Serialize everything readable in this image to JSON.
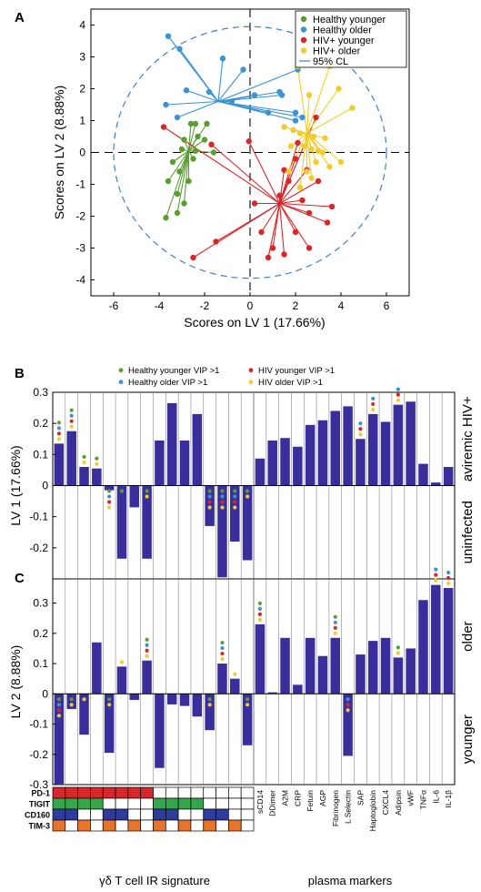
{
  "figure": {
    "panel_A": "A",
    "panel_B": "B",
    "panel_C": "C"
  },
  "colors": {
    "healthy_younger": "#5a9e32",
    "healthy_older": "#3b93d1",
    "hiv_younger": "#d9262a",
    "hiv_older": "#f2cc2a",
    "bar": "#3a2d9c",
    "ellipse": "#3f7fc4",
    "pd1": "#d9262a",
    "tigit": "#36a64a",
    "cd160": "#2f3c9e",
    "tim3": "#e8742a"
  },
  "chart_data": [
    {
      "type": "scatter",
      "xlabel": "Scores on LV 1 (17.66%)",
      "ylabel": "Scores on LV 2 (8.88%)",
      "xlim": [
        -7,
        7
      ],
      "ylim": [
        -4.5,
        4.5
      ],
      "xticks": [
        -6,
        -4,
        -2,
        0,
        2,
        4,
        6
      ],
      "yticks": [
        4,
        3,
        2,
        1,
        0,
        -1,
        -2,
        -3,
        -4
      ],
      "legend_position": "top-right",
      "confidence_ellipse": {
        "label": "95% CL",
        "x_radius": 6,
        "y_radius": 3.95
      },
      "series": [
        {
          "name": "Healthy younger",
          "centroid": [
            -2.7,
            0.05
          ],
          "points": [
            [
              -2.6,
              0.9
            ],
            [
              -2.4,
              0.9
            ],
            [
              -1.9,
              0.9
            ],
            [
              -2.9,
              0.4
            ],
            [
              -2.3,
              0.5
            ],
            [
              -2.0,
              0.4
            ],
            [
              -3.0,
              0.1
            ],
            [
              -2.4,
              0.05
            ],
            [
              -1.6,
              0.0
            ],
            [
              -3.4,
              -0.3
            ],
            [
              -2.5,
              -0.2
            ],
            [
              -3.1,
              -0.6
            ],
            [
              -3.6,
              -0.9
            ],
            [
              -2.7,
              -0.9
            ],
            [
              -3.2,
              -1.3
            ],
            [
              -2.9,
              -1.6
            ],
            [
              -3.7,
              -2.05
            ],
            [
              -3.2,
              -1.9
            ]
          ]
        },
        {
          "name": "Healthy older",
          "centroid": [
            -1.4,
            1.6
          ],
          "points": [
            [
              -3.6,
              3.65
            ],
            [
              -3.1,
              3.25
            ],
            [
              -1.2,
              2.95
            ],
            [
              -0.3,
              2.6
            ],
            [
              -2.8,
              1.95
            ],
            [
              -1.8,
              1.9
            ],
            [
              0.2,
              1.8
            ],
            [
              1.4,
              1.8
            ],
            [
              -3.7,
              1.5
            ],
            [
              -0.8,
              1.6
            ],
            [
              -3.2,
              1.1
            ],
            [
              2.0,
              1.25
            ],
            [
              1.3,
              1.9
            ],
            [
              2.1,
              2.6
            ],
            [
              0.8,
              1.25
            ],
            [
              2.3,
              1.1
            ],
            [
              2.0,
              1.0
            ]
          ]
        },
        {
          "name": "HIV+ younger",
          "centroid": [
            1.3,
            -1.6
          ],
          "points": [
            [
              -3.8,
              0.8
            ],
            [
              -1.7,
              0.25
            ],
            [
              -0.05,
              0.35
            ],
            [
              2.1,
              0.3
            ],
            [
              2.9,
              1.1
            ],
            [
              2.0,
              -0.2
            ],
            [
              1.5,
              -0.55
            ],
            [
              2.5,
              -0.55
            ],
            [
              1.7,
              -0.9
            ],
            [
              1.3,
              -1.35
            ],
            [
              -1.5,
              -2.8
            ],
            [
              -2.5,
              -3.3
            ],
            [
              0.2,
              -1.6
            ],
            [
              0.5,
              -2.5
            ],
            [
              0.8,
              -3.3
            ],
            [
              1.0,
              -3.0
            ],
            [
              1.5,
              -3.2
            ],
            [
              2.0,
              -2.5
            ],
            [
              2.3,
              -1.5
            ],
            [
              2.6,
              -1.9
            ],
            [
              2.6,
              -3.0
            ],
            [
              3.4,
              -2.2
            ],
            [
              3.6,
              -1.7
            ],
            [
              3.0,
              -0.9
            ]
          ]
        },
        {
          "name": "HIV+ older",
          "centroid": [
            2.5,
            0.6
          ],
          "points": [
            [
              2.1,
              2.7
            ],
            [
              3.5,
              2.7
            ],
            [
              3.9,
              2.0
            ],
            [
              4.5,
              1.4
            ],
            [
              2.6,
              1.8
            ],
            [
              1.5,
              0.8
            ],
            [
              1.9,
              0.7
            ],
            [
              2.2,
              0.6
            ],
            [
              2.8,
              0.5
            ],
            [
              3.3,
              0.45
            ],
            [
              1.8,
              0.2
            ],
            [
              2.4,
              0.2
            ],
            [
              2.7,
              0.1
            ],
            [
              3.0,
              0.05
            ],
            [
              3.2,
              0.0
            ],
            [
              2.9,
              -0.3
            ],
            [
              2.5,
              -0.6
            ],
            [
              2.7,
              -0.8
            ],
            [
              3.5,
              -0.45
            ],
            [
              4.0,
              -0.3
            ],
            [
              1.7,
              -0.6
            ],
            [
              2.2,
              -1.1
            ]
          ]
        }
      ]
    },
    {
      "type": "bar",
      "ylabel": "LV 1 (17.66%)",
      "ylim": [
        -0.3,
        0.3
      ],
      "yticks": [
        0.3,
        0.2,
        0.1,
        0,
        -0.1,
        -0.2
      ],
      "upper_label": "aviremic HIV+",
      "lower_label": "uninfected",
      "legend": [
        "Healthy younger VIP >1",
        "Healthy older VIP >1",
        "HIV younger VIP >1",
        "HIV older VIP >1"
      ],
      "values": [
        0.135,
        0.175,
        0.06,
        0.055,
        -0.015,
        -0.235,
        -0.07,
        -0.235,
        0.145,
        0.265,
        0.145,
        0.23,
        -0.13,
        -0.295,
        -0.18,
        -0.24,
        0.087,
        0.145,
        0.153,
        0.125,
        0.195,
        0.21,
        0.24,
        0.255,
        0.15,
        0.23,
        0.205,
        0.26,
        0.27,
        0.07,
        0.01,
        0.06
      ],
      "vip": [
        [
          "g",
          "b",
          "r",
          "y"
        ],
        [
          "g",
          "b",
          "r",
          "y"
        ],
        [
          "g",
          "y"
        ],
        [
          "g",
          "y"
        ],
        [
          "g",
          "b",
          "r",
          "y"
        ],
        [
          "g"
        ],
        [],
        [
          "g",
          "y"
        ],
        [],
        [],
        [],
        [],
        [
          "g",
          "b",
          "r",
          "y"
        ],
        [
          "g",
          "b",
          "r",
          "y"
        ],
        [
          "g",
          "b",
          "r",
          "y"
        ],
        [
          "g",
          "y"
        ],
        [],
        [],
        [],
        [],
        [],
        [],
        [],
        [],
        [
          "b",
          "r",
          "y"
        ],
        [
          "b",
          "r",
          "y"
        ],
        [],
        [
          "b",
          "r",
          "y"
        ],
        [],
        [],
        [],
        []
      ]
    },
    {
      "type": "bar",
      "ylabel": "LV 2 (8.88%)",
      "ylim": [
        -0.3,
        0.38
      ],
      "yticks": [
        0.3,
        0.2,
        0.1,
        0,
        -0.1,
        -0.2,
        -0.3
      ],
      "upper_label": "older",
      "lower_label": "younger",
      "categories": [
        "",
        "",
        "",
        "",
        "",
        "",
        "",
        "",
        "",
        "",
        "",
        "",
        "",
        "",
        "",
        "",
        "sCD14",
        "DDimer",
        "A2M",
        "CRP",
        "Fetuin",
        "AGP",
        "Fibrinogen",
        "L Selectin",
        "SAP",
        "Haptoglobin",
        "CXCL4",
        "Adipsin",
        "vWF",
        "TNFα",
        "IL-6",
        "IL-1β"
      ],
      "values": [
        -0.3,
        -0.05,
        -0.135,
        0.17,
        -0.195,
        0.09,
        -0.02,
        0.11,
        -0.245,
        -0.035,
        -0.04,
        -0.075,
        -0.12,
        0.1,
        0.05,
        -0.17,
        0.23,
        0.005,
        0.185,
        0.03,
        0.185,
        0.125,
        0.185,
        -0.205,
        0.13,
        0.175,
        0.185,
        0.12,
        0.15,
        0.31,
        0.36,
        0.35
      ],
      "vip": [
        [
          "g",
          "b",
          "r",
          "y"
        ],
        [
          "g",
          "y"
        ],
        [
          "y"
        ],
        [],
        [
          "g",
          "y"
        ],
        [
          "y"
        ],
        [],
        [
          "g",
          "b",
          "r",
          "y"
        ],
        [],
        [],
        [],
        [],
        [
          "g",
          "y"
        ],
        [
          "g",
          "b",
          "r",
          "y"
        ],
        [
          "y"
        ],
        [
          "g",
          "y"
        ],
        [
          "g",
          "b",
          "r",
          "y"
        ],
        [],
        [],
        [],
        [],
        [],
        [
          "g",
          "b",
          "r",
          "y"
        ],
        [
          "b",
          "r",
          "y"
        ],
        [],
        [],
        [],
        [
          "g",
          "y"
        ],
        [],
        [],
        [
          "b",
          "r",
          "y"
        ],
        [
          "b",
          "r",
          "y"
        ]
      ]
    }
  ],
  "ir_signature": {
    "rows": [
      "PD-1",
      "TIGIT",
      "CD160",
      "TIM-3"
    ],
    "columns": [
      [
        1,
        1,
        1,
        1
      ],
      [
        1,
        1,
        1,
        0
      ],
      [
        1,
        1,
        0,
        1
      ],
      [
        1,
        1,
        0,
        0
      ],
      [
        1,
        0,
        1,
        1
      ],
      [
        1,
        0,
        1,
        0
      ],
      [
        1,
        0,
        0,
        1
      ],
      [
        1,
        0,
        0,
        0
      ],
      [
        0,
        1,
        1,
        1
      ],
      [
        0,
        1,
        1,
        0
      ],
      [
        0,
        1,
        0,
        1
      ],
      [
        0,
        1,
        0,
        0
      ],
      [
        0,
        0,
        1,
        1
      ],
      [
        0,
        0,
        1,
        0
      ],
      [
        0,
        0,
        0,
        1
      ],
      [
        0,
        0,
        0,
        0
      ]
    ],
    "title": "γδ T cell IR signature"
  },
  "plasma_label": "plasma markers"
}
